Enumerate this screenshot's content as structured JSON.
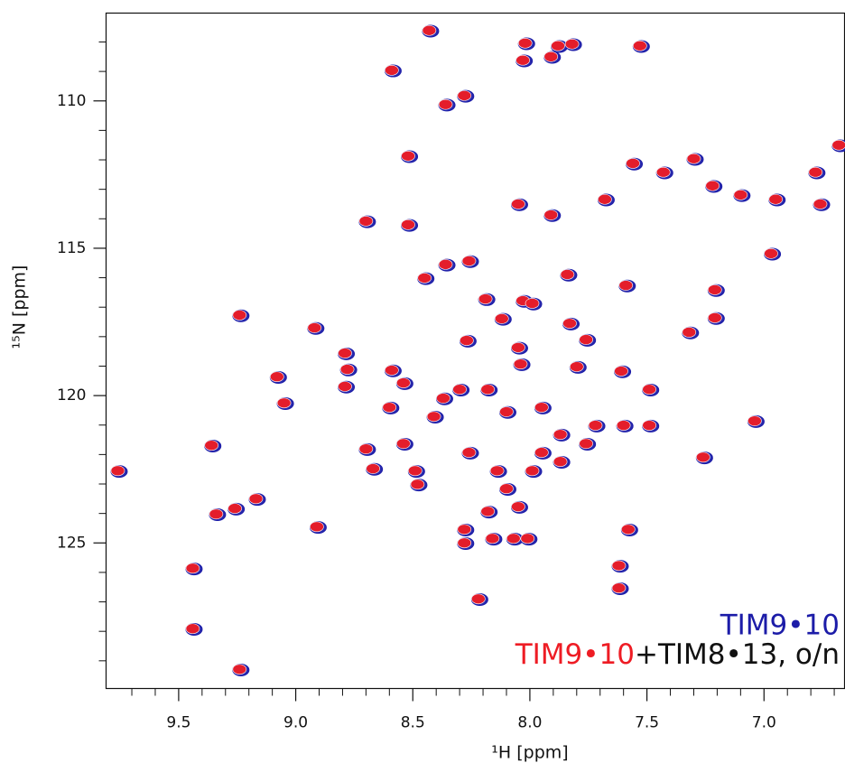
{
  "chart_data": {
    "type": "scatter",
    "x_label": "¹H [ppm]",
    "y_label": "¹⁵N [ppm]",
    "xlim": [
      9.81,
      6.656
    ],
    "ylim": [
      107.02,
      129.94
    ],
    "xticks": [
      9.5,
      {
        "value": 9,
        "label": "9.0"
      },
      8.5,
      {
        "value": 8,
        "label": "8.0"
      },
      7.5,
      {
        "value": 7,
        "label": "7.0"
      }
    ],
    "yticks": [
      110,
      115,
      120,
      125
    ],
    "xminorticks": [
      9.7,
      9.6,
      9.4,
      9.3,
      9.2,
      9.1,
      8.9,
      8.8,
      8.7,
      8.6,
      8.4,
      8.3,
      8.2,
      8.1,
      7.9,
      7.8,
      7.7,
      7.6,
      7.4,
      7.3,
      7.2,
      7.1,
      6.9,
      6.8,
      6.7
    ],
    "yminorticks": [
      108,
      109,
      111,
      112,
      113,
      114,
      116,
      117,
      118,
      119,
      121,
      122,
      123,
      124,
      126,
      127,
      128,
      129
    ],
    "series": [
      {
        "name": "TIM9•10",
        "color": "#1c1ca8",
        "x": [
          8.43,
          8.59,
          8.02,
          7.88,
          7.82,
          8.03,
          7.91,
          8.36,
          8.28,
          7.53,
          8.52,
          8.7,
          8.52,
          8.05,
          7.91,
          8.45,
          8.36,
          8.26,
          7.84,
          7.59,
          7.21,
          8.19,
          8.12,
          8.03,
          7.99,
          9.24,
          8.92,
          7.83,
          7.76,
          7.32,
          7.21,
          8.27,
          8.05,
          8.79,
          8.78,
          8.79,
          8.59,
          8.54,
          9.08,
          9.05,
          8.6,
          8.04,
          7.8,
          7.61,
          7.49,
          9.36,
          8.7,
          8.54,
          8.67,
          8.49,
          8.48,
          9.34,
          9.26,
          9.17,
          8.91,
          8.28,
          8.28,
          8.16,
          8.07,
          8.01,
          8.22,
          9.44,
          9.44,
          9.24,
          9.76,
          7.04,
          7.26,
          7.58,
          7.62,
          7.62,
          6.97,
          7.72,
          7.6,
          7.49,
          7.95,
          8.18,
          8.37,
          8.26,
          8.1,
          7.99,
          7.87,
          7.76,
          8.05,
          8.18,
          7.68,
          7.56,
          7.43,
          7.3,
          7.22,
          7.1,
          6.95,
          6.78,
          6.76,
          6.68,
          8.41,
          8.3,
          8.1,
          7.87,
          7.95,
          8.14
        ],
        "values": [
          107.61,
          108.96,
          108.04,
          108.13,
          108.07,
          108.62,
          108.5,
          110.12,
          109.82,
          108.13,
          111.87,
          114.08,
          114.2,
          113.5,
          113.87,
          116.01,
          115.55,
          115.43,
          115.89,
          116.26,
          116.41,
          116.72,
          117.39,
          116.78,
          116.87,
          117.27,
          117.7,
          117.55,
          118.1,
          117.85,
          117.36,
          118.13,
          118.37,
          118.56,
          119.11,
          119.69,
          119.14,
          119.57,
          119.36,
          120.25,
          120.4,
          118.93,
          119.02,
          119.17,
          119.79,
          121.69,
          121.81,
          121.63,
          122.48,
          122.55,
          123.01,
          124.02,
          123.83,
          123.5,
          124.45,
          124.54,
          125.0,
          124.85,
          124.85,
          124.85,
          126.9,
          125.86,
          127.91,
          129.29,
          122.55,
          120.86,
          122.09,
          124.54,
          125.77,
          126.53,
          115.18,
          121.01,
          121.01,
          121.01,
          120.4,
          119.79,
          120.09,
          121.93,
          123.16,
          122.55,
          122.24,
          121.63,
          123.77,
          123.93,
          113.34,
          112.12,
          112.42,
          111.96,
          112.88,
          113.19,
          113.34,
          112.42,
          113.5,
          111.5,
          120.71,
          119.79,
          120.55,
          121.32,
          121.93,
          122.55
        ]
      },
      {
        "name": "TIM9•10+TIM8•13, o/n",
        "color": "#ee1c24",
        "x": [
          8.43,
          8.59,
          8.02,
          7.88,
          7.82,
          8.03,
          7.91,
          8.36,
          8.28,
          7.53,
          8.52,
          8.7,
          8.52,
          8.05,
          7.91,
          8.45,
          8.36,
          8.26,
          7.84,
          7.59,
          7.21,
          8.19,
          8.12,
          8.03,
          7.99,
          9.24,
          8.92,
          7.83,
          7.76,
          7.32,
          7.21,
          8.27,
          8.05,
          8.79,
          8.78,
          8.79,
          8.59,
          8.54,
          9.08,
          9.05,
          8.6,
          8.04,
          7.8,
          7.61,
          7.49,
          9.36,
          8.7,
          8.54,
          8.67,
          8.49,
          8.48,
          9.34,
          9.26,
          9.17,
          8.91,
          8.28,
          8.28,
          8.16,
          8.07,
          8.01,
          8.22,
          9.44,
          9.44,
          9.24,
          9.76,
          7.04,
          7.26,
          7.58,
          7.62,
          7.62,
          6.97,
          7.72,
          7.6,
          7.49,
          7.95,
          8.18,
          8.37,
          8.26,
          8.1,
          7.99,
          7.87,
          7.76,
          8.05,
          8.18,
          7.68,
          7.56,
          7.43,
          7.3,
          7.22,
          7.1,
          6.95,
          6.78,
          6.76,
          6.68,
          8.41,
          8.3,
          8.1,
          7.87,
          7.95,
          8.14
        ],
        "values": [
          107.61,
          108.96,
          108.04,
          108.13,
          108.07,
          108.62,
          108.5,
          110.12,
          109.82,
          108.13,
          111.87,
          114.08,
          114.2,
          113.5,
          113.87,
          116.01,
          115.55,
          115.43,
          115.89,
          116.26,
          116.41,
          116.72,
          117.39,
          116.78,
          116.87,
          117.27,
          117.7,
          117.55,
          118.1,
          117.85,
          117.36,
          118.13,
          118.37,
          118.56,
          119.11,
          119.69,
          119.14,
          119.57,
          119.36,
          120.25,
          120.4,
          118.93,
          119.02,
          119.17,
          119.79,
          121.69,
          121.81,
          121.63,
          122.48,
          122.55,
          123.01,
          124.02,
          123.83,
          123.5,
          124.45,
          124.54,
          125.0,
          124.85,
          124.85,
          124.85,
          126.9,
          125.86,
          127.91,
          129.29,
          122.55,
          120.86,
          122.09,
          124.54,
          125.77,
          126.53,
          115.18,
          121.01,
          121.01,
          121.01,
          120.4,
          119.79,
          120.09,
          121.93,
          123.16,
          122.55,
          122.24,
          121.63,
          123.77,
          123.93,
          113.34,
          112.12,
          112.42,
          111.96,
          112.88,
          113.19,
          113.34,
          112.42,
          113.5,
          111.5,
          120.71,
          119.79,
          120.55,
          121.32,
          121.93,
          122.55
        ]
      }
    ]
  }
}
